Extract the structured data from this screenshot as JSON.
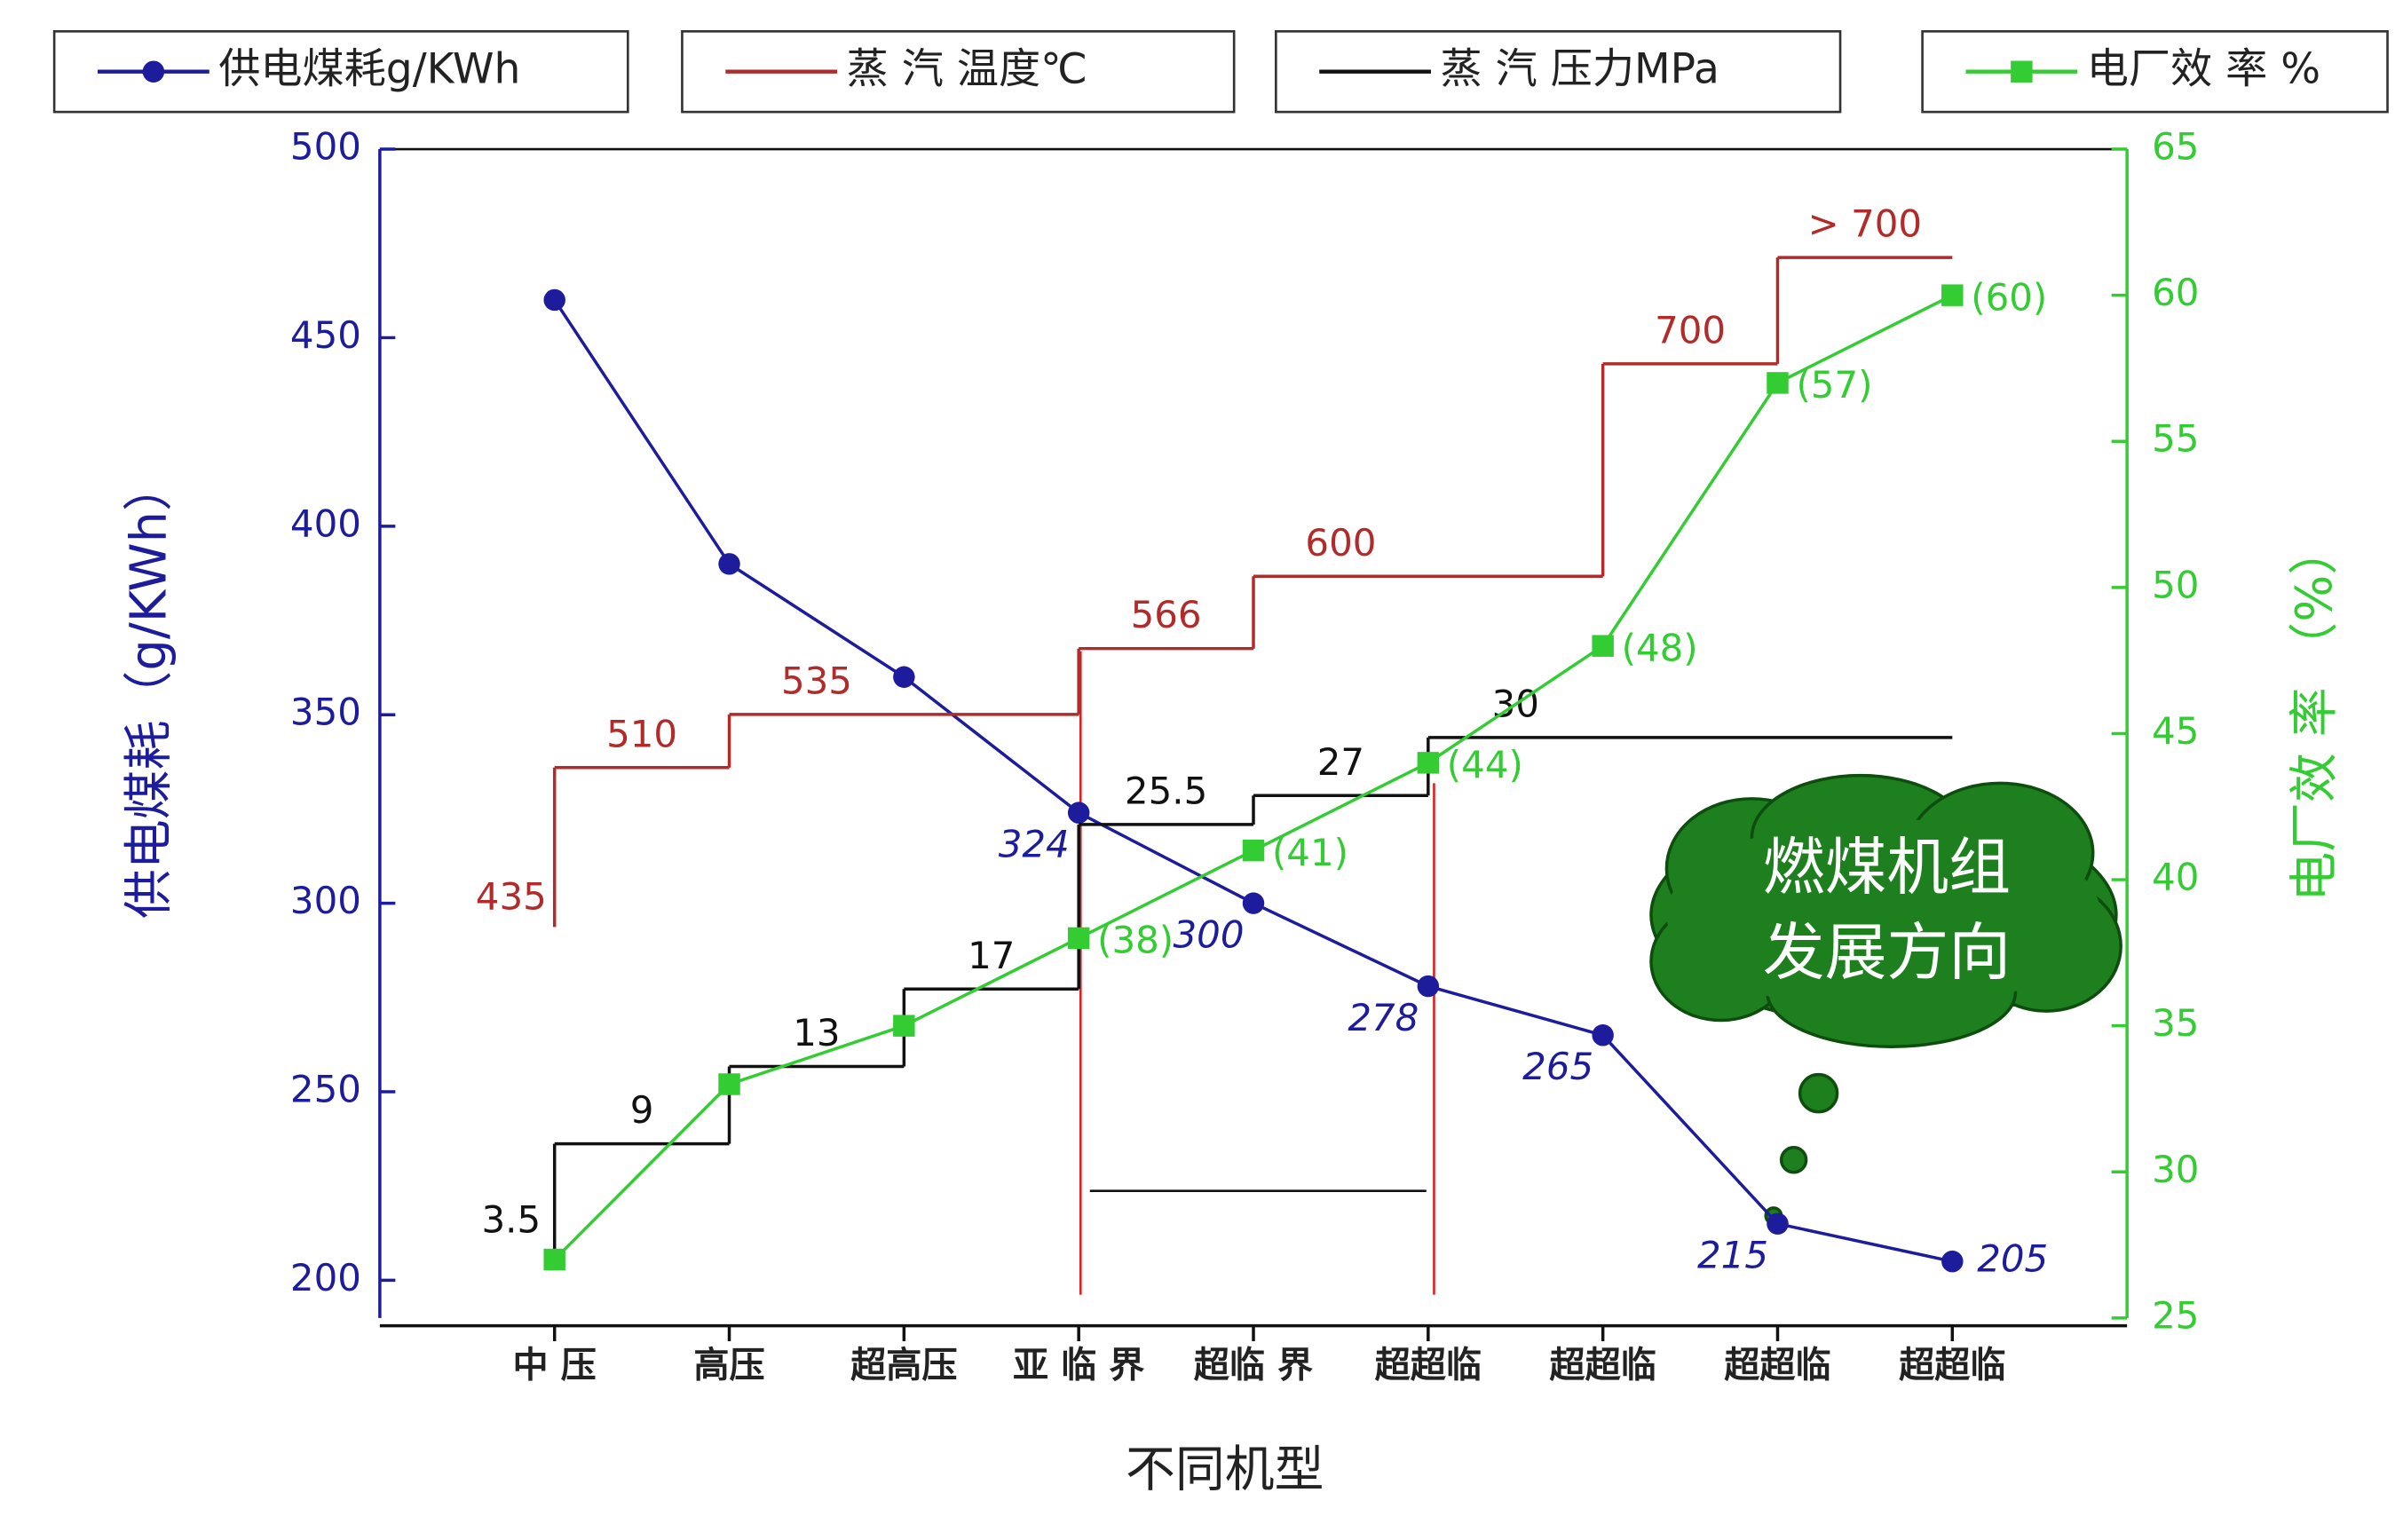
{
  "chart_data": {
    "type": "line",
    "x_label": "不同机型",
    "y_label": "供电煤耗（g/KWh）",
    "y2_label": "电厂效 率 （%）",
    "categories": [
      "中 压",
      "高压",
      "超高压",
      "亚 临 界",
      "超临 界",
      "超超临",
      "超超临",
      "超超临",
      "超超临"
    ],
    "ylim": [
      190,
      500
    ],
    "yticks": [
      200,
      250,
      300,
      350,
      400,
      450,
      500
    ],
    "y2lim": [
      25,
      65
    ],
    "y2ticks": [
      25,
      30,
      35,
      40,
      45,
      50,
      55,
      60,
      65
    ],
    "y3lim": [
      251,
      801
    ],
    "y4lim": [
      0,
      60.4
    ],
    "series": [
      {
        "name": "供电煤耗g/KWh",
        "color": "#1c1c9c",
        "marker": "circle",
        "values": [
          460,
          390,
          360,
          324,
          300,
          278,
          265,
          215,
          205
        ],
        "value_labels": [
          null,
          null,
          null,
          "324",
          "300",
          "278",
          "265",
          "215",
          "205"
        ]
      },
      {
        "name": "蒸 汽  温度℃",
        "color": "#b22b2b",
        "type": "step",
        "axis": "y3",
        "start": 435,
        "steps": [
          {
            "value": 510,
            "from": 0,
            "to": 1
          },
          {
            "value": 535,
            "from": 1,
            "to": 3
          },
          {
            "value": 566,
            "from": 3,
            "to": 4
          },
          {
            "value": 600,
            "from": 4,
            "to": 6
          },
          {
            "value": 700,
            "from": 6,
            "to": 7
          },
          {
            "value": 750,
            "label": "> 700",
            "from": 7,
            "to": 8
          }
        ]
      },
      {
        "name": "蒸 汽  压力MPa",
        "color": "#111111",
        "type": "step",
        "axis": "y4",
        "start": 3.5,
        "steps": [
          {
            "value": 9,
            "from": 0,
            "to": 1
          },
          {
            "value": 13,
            "from": 1,
            "to": 2
          },
          {
            "value": 17,
            "from": 2,
            "to": 3
          },
          {
            "value": 25.5,
            "from": 3,
            "to": 4
          },
          {
            "value": 27,
            "from": 4,
            "to": 5
          },
          {
            "value": 30,
            "from": 5,
            "to": 8
          }
        ]
      },
      {
        "name": "电厂效 率 %",
        "color": "#33cc33",
        "marker": "square",
        "axis": "y2",
        "values": [
          27,
          33,
          35,
          38,
          41,
          44,
          48,
          57,
          60
        ],
        "value_labels": [
          null,
          null,
          null,
          "(38)",
          "(41)",
          "(44)",
          "(48)",
          "(57)",
          "(60)"
        ]
      }
    ],
    "annotation": [
      "燃煤机组",
      "发展方向"
    ]
  }
}
